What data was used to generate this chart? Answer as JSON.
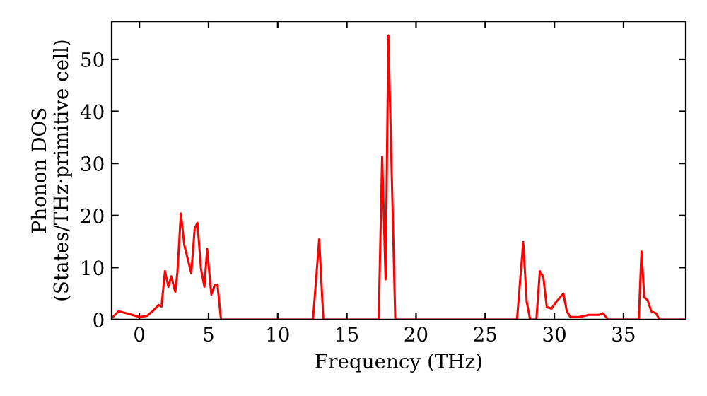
{
  "chart_data": {
    "type": "line",
    "xlabel": "Frequency (THz)",
    "ylabel": "Phonon DOS\n(States/THz·primitive cell)",
    "xlim": [
      -2,
      39.5
    ],
    "ylim": [
      0,
      57.3
    ],
    "xticks": [
      0,
      5,
      10,
      15,
      20,
      25,
      30,
      35
    ],
    "yticks": [
      0,
      10,
      20,
      30,
      40,
      50
    ],
    "grid": false,
    "marker": "none",
    "line_style": "solid",
    "series": [
      {
        "color": "#ff0000",
        "x": [
          -2,
          -1.84,
          -1.5,
          -0.65,
          0,
          0.55,
          0.95,
          1.4,
          1.6,
          1.85,
          2.1,
          2.3,
          2.6,
          2.75,
          3.0,
          3.25,
          3.75,
          4.0,
          4.2,
          4.45,
          4.7,
          4.9,
          5.2,
          5.45,
          5.65,
          5.9,
          12.55,
          13.0,
          13.3,
          17.3,
          17.55,
          17.8,
          18.0,
          18.5,
          27.3,
          27.75,
          28.0,
          28.25,
          28.7,
          28.95,
          29.2,
          29.45,
          29.8,
          30.1,
          30.65,
          30.9,
          31.15,
          31.8,
          32.5,
          33.2,
          33.5,
          33.9,
          36.1,
          36.3,
          36.5,
          36.75,
          37.0,
          37.35,
          37.6,
          39.5
        ],
        "values": [
          0.3,
          0.7,
          1.6,
          1.0,
          0.5,
          0.7,
          1.6,
          2.8,
          2.5,
          9.3,
          6.3,
          8.3,
          5.3,
          9.1,
          20.4,
          14.3,
          8.9,
          17.5,
          18.6,
          9.8,
          6.3,
          13.6,
          4.8,
          6.6,
          6.6,
          0,
          0,
          15.4,
          0,
          0,
          31.3,
          7.7,
          54.6,
          0,
          0,
          14.9,
          3.4,
          0,
          0,
          9.3,
          8.2,
          2.4,
          2.1,
          3.3,
          5.0,
          1.6,
          0.5,
          0.5,
          0.9,
          0.9,
          1.2,
          0,
          0,
          13.1,
          4.3,
          3.7,
          1.6,
          1.2,
          0,
          0
        ]
      }
    ]
  }
}
